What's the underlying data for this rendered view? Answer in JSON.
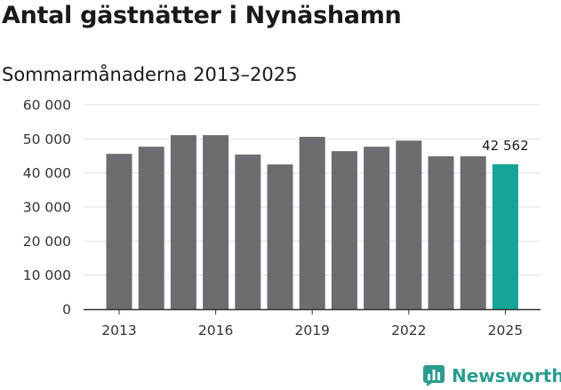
{
  "chart_data": {
    "type": "bar",
    "title": "Antal gästnätter i Nynäshamn",
    "subtitle": "Sommarmånaderna 2013–2025",
    "categories": [
      2013,
      2014,
      2015,
      2016,
      2017,
      2018,
      2019,
      2020,
      2021,
      2022,
      2023,
      2024,
      2025
    ],
    "values": [
      45600,
      47700,
      51100,
      51100,
      45400,
      42500,
      50600,
      46400,
      47700,
      49500,
      44900,
      44900,
      42562
    ],
    "x_tick_labels": [
      "2013",
      "2016",
      "2019",
      "2022",
      "2025"
    ],
    "y_ticks": [
      0,
      10000,
      20000,
      30000,
      40000,
      50000,
      60000
    ],
    "y_tick_labels": [
      "0",
      "10 000",
      "20 000",
      "30 000",
      "40 000",
      "50 000",
      "60 000"
    ],
    "ylim": [
      0,
      60000
    ],
    "grid": true,
    "highlight_category": 2025,
    "highlight_label": "42 562",
    "colors": {
      "bar": "#6d6c71",
      "highlight": "#14a596",
      "grid": "#e2e2e2",
      "axis": "#333333"
    }
  },
  "branding": {
    "name": "Newsworthy",
    "icon": "bar-chart-icon",
    "color": "#2a9d8f"
  }
}
